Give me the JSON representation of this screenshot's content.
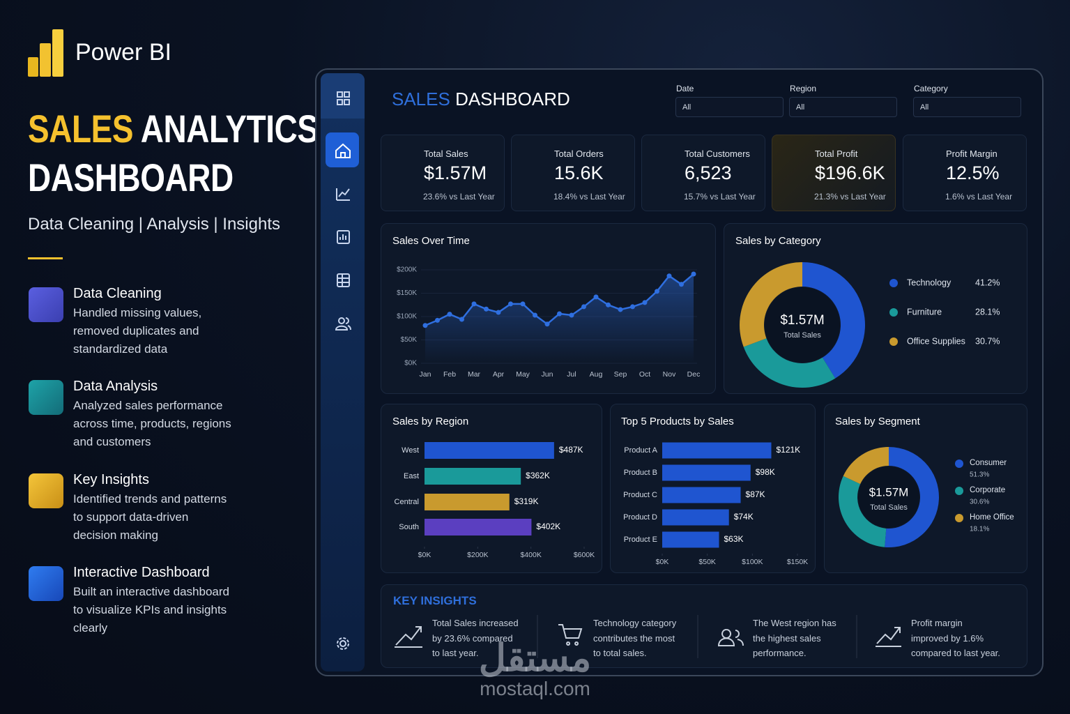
{
  "brand": "Power BI",
  "hero": {
    "accent": "SALES",
    "line1": "ANALYTICS",
    "line2": "DASHBOARD",
    "subtitle": "Data Cleaning | Analysis | Insights"
  },
  "features": [
    {
      "title": "Data Cleaning",
      "text": "Handled missing values, removed duplicates and standardized data"
    },
    {
      "title": "Data Analysis",
      "text": "Analyzed sales performance across time, products, regions and customers"
    },
    {
      "title": "Key Insights",
      "text": "Identified trends and patterns to support data-driven decision making"
    },
    {
      "title": "Interactive Dashboard",
      "text": "Built an interactive dashboard to visualize KPIs and insights clearly"
    }
  ],
  "dashboard": {
    "accent": "SALES",
    "title": "DASHBOARD",
    "filters": [
      {
        "label": "Date",
        "value": "All"
      },
      {
        "label": "Region",
        "value": "All"
      },
      {
        "label": "Category",
        "value": "All"
      }
    ],
    "kpis": [
      {
        "label": "Total Sales",
        "value": "$1.57M",
        "change": "23.6%",
        "compare": "vs Last Year"
      },
      {
        "label": "Total Orders",
        "value": "15.6K",
        "change": "18.4%",
        "compare": "vs Last Year"
      },
      {
        "label": "Total Customers",
        "value": "6,523",
        "change": "15.7%",
        "compare": "vs Last Year"
      },
      {
        "label": "Total Profit",
        "value": "$196.6K",
        "change": "21.3%",
        "compare": "vs Last Year"
      },
      {
        "label": "Profit Margin",
        "value": "12.5%",
        "change": "1.6%",
        "compare": "vs Last Year"
      }
    ]
  },
  "chart_data": [
    {
      "type": "line",
      "title": "Sales Over Time",
      "categories": [
        "Jan",
        null,
        "Feb",
        null,
        "Mar",
        null,
        "Apr",
        null,
        "May",
        null,
        "Jun",
        null,
        "Jul",
        null,
        "Aug",
        null,
        "Sep",
        null,
        "Oct",
        null,
        "Nov",
        null,
        "Dec"
      ],
      "values": [
        81,
        92,
        105,
        94,
        127,
        116,
        109,
        127,
        127,
        103,
        84,
        106,
        103,
        121,
        142,
        125,
        115,
        121,
        130,
        154,
        187,
        169,
        191
      ],
      "color": "#2f6fe0",
      "ylim": [
        0,
        200
      ],
      "yticks": [
        {
          "value": 0,
          "label": "$0K"
        },
        {
          "value": 50,
          "label": "$50K"
        },
        {
          "value": 100,
          "label": "$100K"
        },
        {
          "value": 150,
          "label": "$150K"
        },
        {
          "value": 200,
          "label": "$200K"
        }
      ]
    },
    {
      "type": "donut",
      "title": "Sales by Category",
      "center_value": "$1.57M",
      "center_label": "Total Sales",
      "categories": [
        "Technology",
        "Furniture",
        "Office Supplies"
      ],
      "values": [
        41.2,
        28.1,
        30.7
      ],
      "value_labels": [
        "41.2%",
        "28.1%",
        "30.7%"
      ],
      "colors": [
        "#1f55d0",
        "#1a9a9a",
        "#c99a2e"
      ]
    },
    {
      "type": "hbar",
      "title": "Sales by Region",
      "categories": [
        "West",
        "East",
        "Central",
        "South"
      ],
      "values": [
        487,
        362,
        319,
        402
      ],
      "value_labels": [
        "$487K",
        "$362K",
        "$319K",
        "$402K"
      ],
      "colors": [
        "#1f55d0",
        "#1a9a9a",
        "#c99a2e",
        "#5b3fc0"
      ],
      "xlim": [
        0,
        600
      ],
      "xticks": [
        {
          "value": 0,
          "label": "$0K"
        },
        {
          "value": 200,
          "label": "$200K"
        },
        {
          "value": 400,
          "label": "$400K"
        },
        {
          "value": 600,
          "label": "$600K"
        }
      ]
    },
    {
      "type": "hbar",
      "title": "Top 5 Products by Sales",
      "categories": [
        "Product A",
        "Product B",
        "Product C",
        "Product D",
        "Product E"
      ],
      "values": [
        121,
        98,
        87,
        74,
        63
      ],
      "value_labels": [
        "$121K",
        "$98K",
        "$87K",
        "$74K",
        "$63K"
      ],
      "colors": [
        "#1f55d0",
        "#1f55d0",
        "#1f55d0",
        "#1f55d0",
        "#1f55d0"
      ],
      "xlim": [
        0,
        150
      ],
      "xticks": [
        {
          "value": 0,
          "label": "$0K"
        },
        {
          "value": 50,
          "label": "$50K"
        },
        {
          "value": 100,
          "label": "$100K"
        },
        {
          "value": 150,
          "label": "$150K"
        }
      ]
    },
    {
      "type": "donut",
      "title": "Sales by Segment",
      "center_value": "$1.57M",
      "center_label": "Total Sales",
      "categories": [
        "Consumer",
        "Corporate",
        "Home Office"
      ],
      "values": [
        51.3,
        30.6,
        18.1
      ],
      "value_labels": [
        "51.3%",
        "30.6%",
        "18.1%"
      ],
      "colors": [
        "#1f55d0",
        "#1a9a9a",
        "#c99a2e"
      ]
    }
  ],
  "insights": {
    "title": "KEY INSIGHTS",
    "items": [
      "Total Sales increased by 23.6% compared to last year.",
      "Technology category contributes the most to total sales.",
      "The West region has the highest sales performance.",
      "Profit margin improved by 1.6% compared to last year."
    ]
  },
  "watermark": {
    "arabic": "مستقل",
    "latin": "mostaql.com"
  }
}
